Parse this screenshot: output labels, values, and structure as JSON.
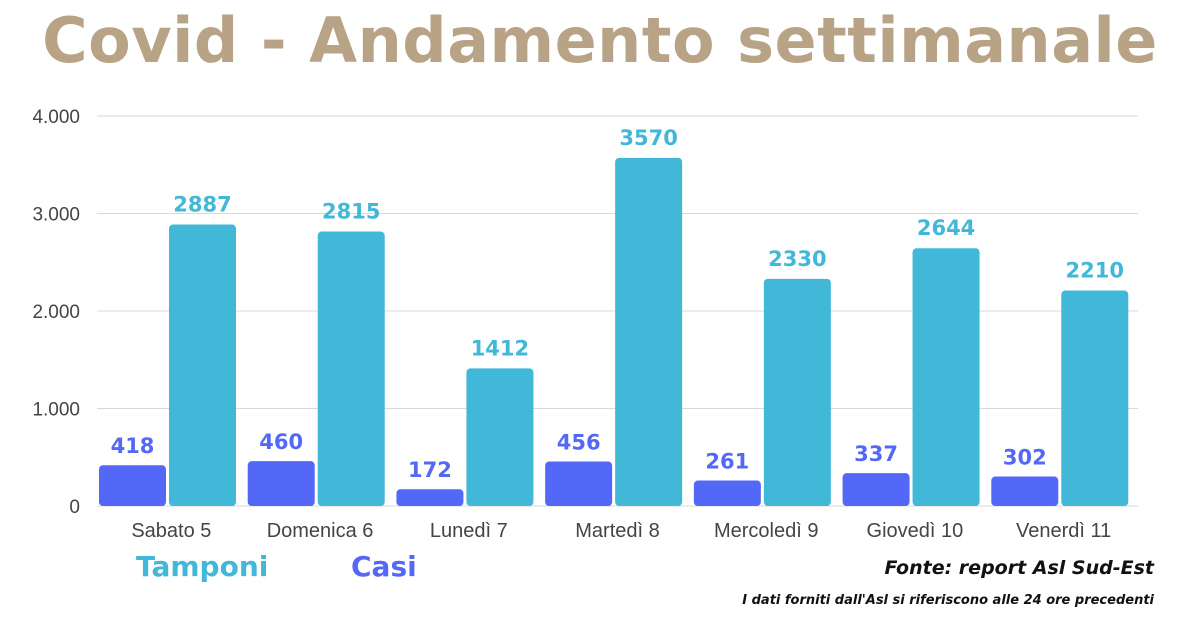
{
  "colors": {
    "title": "#b8a386",
    "tamponi": "#41b8d8",
    "casi": "#5468f7",
    "grid": "#d9d9d9",
    "axis_text": "#444444"
  },
  "legend": {
    "tamponi": "Tamponi",
    "casi": "Casi"
  },
  "footer": {
    "source": "Fonte: report Asl Sud-Est",
    "note": "I dati forniti dall'Asl si riferiscono alle 24 ore precedenti"
  },
  "chart_data": {
    "type": "bar",
    "title": "Covid - Andamento settimanale",
    "categories": [
      "Sabato 5",
      "Domenica 6",
      "Lunedì 7",
      "Martedì 8",
      "Mercoledì 9",
      "Giovedì 10",
      "Venerdì 11"
    ],
    "series": [
      {
        "name": "Casi",
        "values": [
          418,
          460,
          172,
          456,
          261,
          337,
          302
        ]
      },
      {
        "name": "Tamponi",
        "values": [
          2887,
          2815,
          1412,
          3570,
          2330,
          2644,
          2210
        ]
      }
    ],
    "ylim": [
      0,
      4000
    ],
    "yticks": [
      0,
      1000,
      2000,
      3000,
      4000
    ],
    "ytick_labels": [
      "0",
      "1.000",
      "2.000",
      "3.000",
      "4.000"
    ],
    "grid": true,
    "legend_position": "bottom-left"
  }
}
